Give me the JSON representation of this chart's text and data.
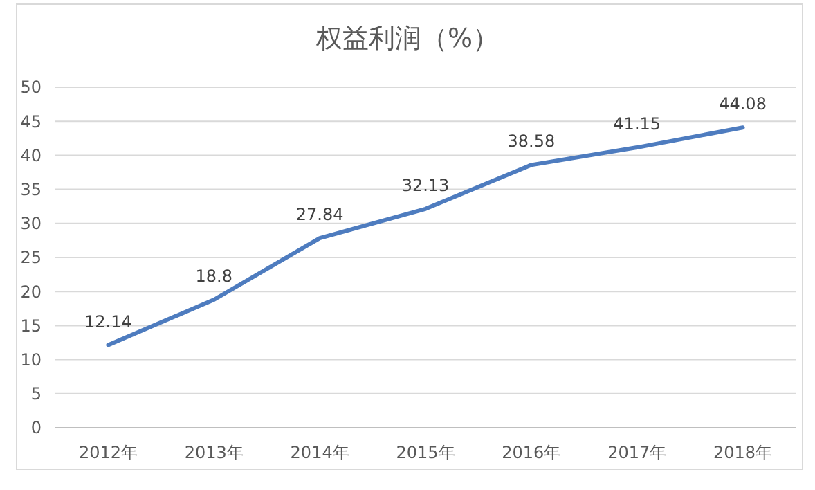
{
  "chart_data": {
    "type": "line",
    "title": "权益利润（%）",
    "categories": [
      "2012年",
      "2013年",
      "2014年",
      "2015年",
      "2016年",
      "2017年",
      "2018年"
    ],
    "series": [
      {
        "color": "#4e7cbf",
        "values": [
          12.14,
          18.8,
          27.84,
          32.13,
          38.58,
          41.15,
          44.08
        ]
      }
    ],
    "ylim": [
      0,
      50
    ],
    "yticks": [
      0,
      5,
      10,
      15,
      20,
      25,
      30,
      35,
      40,
      45,
      50
    ],
    "grid": "y",
    "data_labels": true,
    "marker": "none",
    "line_style": "solid"
  }
}
